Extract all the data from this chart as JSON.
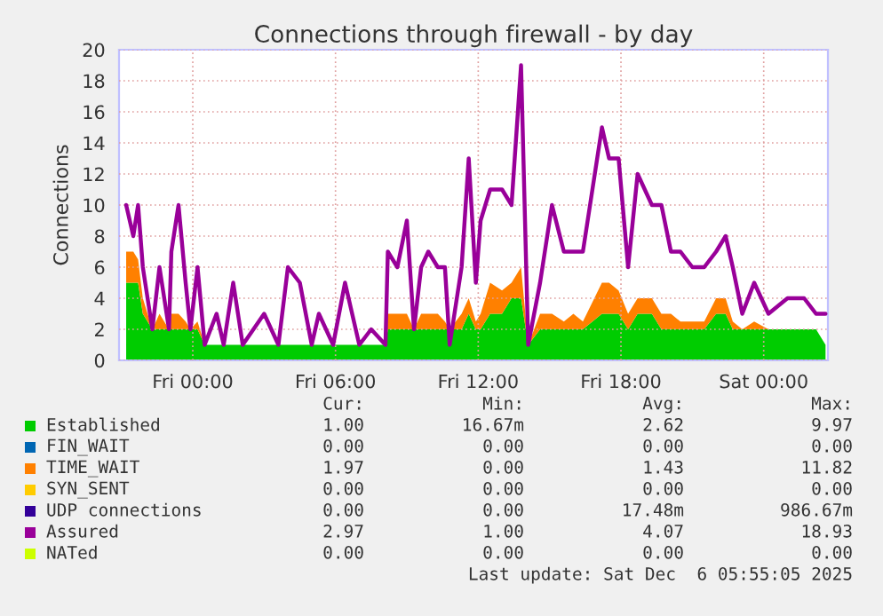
{
  "chart_data": {
    "type": "area",
    "stacked": true,
    "title": "Connections through firewall - by day",
    "ylabel": "Connections",
    "x": [
      "2025-12-04T21:12",
      "2025-12-04T21:30",
      "2025-12-04T21:42",
      "2025-12-04T21:54",
      "2025-12-04T22:18",
      "2025-12-04T22:36",
      "2025-12-04T23:00",
      "2025-12-04T23:06",
      "2025-12-04T23:24",
      "2025-12-04T23:42",
      "2025-12-04T23:54",
      "2025-12-05T00:12",
      "2025-12-05T00:30",
      "2025-12-05T01:00",
      "2025-12-05T01:18",
      "2025-12-05T01:42",
      "2025-12-05T02:06",
      "2025-12-05T03:00",
      "2025-12-05T03:36",
      "2025-12-05T04:00",
      "2025-12-05T04:30",
      "2025-12-05T05:00",
      "2025-12-05T05:18",
      "2025-12-05T05:54",
      "2025-12-05T06:24",
      "2025-12-05T07:00",
      "2025-12-05T07:30",
      "2025-12-05T08:06",
      "2025-12-05T08:12",
      "2025-12-05T08:36",
      "2025-12-05T09:00",
      "2025-12-05T09:18",
      "2025-12-05T09:36",
      "2025-12-05T09:54",
      "2025-12-05T10:18",
      "2025-12-05T10:36",
      "2025-12-05T10:48",
      "2025-12-05T11:18",
      "2025-12-05T11:36",
      "2025-12-05T11:54",
      "2025-12-05T12:06",
      "2025-12-05T12:30",
      "2025-12-05T13:00",
      "2025-12-05T13:24",
      "2025-12-05T13:48",
      "2025-12-05T14:06",
      "2025-12-05T14:36",
      "2025-12-05T15:06",
      "2025-12-05T15:36",
      "2025-12-05T16:00",
      "2025-12-05T16:24",
      "2025-12-05T17:12",
      "2025-12-05T17:30",
      "2025-12-05T17:54",
      "2025-12-05T18:18",
      "2025-12-05T18:42",
      "2025-12-05T19:18",
      "2025-12-05T19:42",
      "2025-12-05T20:06",
      "2025-12-05T20:30",
      "2025-12-05T21:00",
      "2025-12-05T21:30",
      "2025-12-05T22:00",
      "2025-12-05T22:24",
      "2025-12-05T22:42",
      "2025-12-05T23:06",
      "2025-12-05T23:36",
      "2025-12-06T00:12",
      "2025-12-06T01:00",
      "2025-12-06T01:42",
      "2025-12-06T02:12",
      "2025-12-06T02:36"
    ],
    "series": [
      {
        "name": "Established",
        "color": "#00cc00",
        "values": [
          5,
          5,
          5,
          3,
          2,
          2,
          2,
          2,
          2,
          2,
          2,
          2,
          1,
          1,
          1,
          1,
          1,
          1,
          1,
          1,
          1,
          1,
          1,
          1,
          1,
          1,
          1,
          1,
          2,
          2,
          2,
          2,
          2,
          2,
          2,
          2,
          2,
          2,
          3,
          2,
          2,
          3,
          3,
          4,
          4,
          1,
          2,
          2,
          2,
          2,
          2,
          3,
          3,
          3,
          2,
          3,
          3,
          2,
          2,
          2,
          2,
          2,
          3,
          3,
          2,
          2,
          2,
          2,
          2,
          2,
          2,
          1
        ]
      },
      {
        "name": "FIN_WAIT",
        "color": "#0066b3",
        "values": [
          null,
          null,
          null,
          null,
          null,
          null,
          null,
          null,
          null,
          null,
          null,
          null,
          null,
          null,
          null,
          null,
          null,
          null,
          null,
          null,
          null,
          null,
          null,
          null,
          null,
          null,
          null,
          null,
          null,
          null,
          null,
          null,
          null,
          null,
          null,
          null,
          null,
          null,
          null,
          null,
          null,
          null,
          null,
          null,
          null,
          null,
          null,
          null,
          null,
          null,
          null,
          null,
          null,
          null,
          null,
          null,
          null,
          null,
          null,
          null,
          null,
          null,
          null,
          null,
          null,
          null,
          null,
          null,
          null,
          null,
          null,
          null
        ]
      },
      {
        "name": "TIME_WAIT",
        "color": "#ff8000",
        "values": [
          2,
          2,
          1.5,
          1,
          0,
          1,
          0,
          1,
          1,
          0.5,
          0,
          0.5,
          0,
          0,
          0,
          0,
          0,
          0,
          0,
          0,
          0,
          0,
          0,
          0,
          0,
          0,
          0,
          0,
          1,
          1,
          1,
          0,
          1,
          1,
          1,
          0.5,
          0,
          1,
          1,
          0.5,
          1,
          2,
          1.5,
          1,
          2,
          0,
          1,
          1,
          0.5,
          1,
          0.5,
          2,
          2,
          1.5,
          1,
          1,
          1,
          1,
          1,
          0.5,
          0.5,
          0.5,
          1,
          1,
          0.5,
          0,
          0.5,
          0,
          0,
          0,
          0,
          0
        ]
      },
      {
        "name": "SYN_SENT",
        "color": "#ffcc00",
        "values": [
          null,
          null,
          null,
          null,
          null,
          null,
          null,
          null,
          null,
          null,
          null,
          null,
          null,
          null,
          null,
          null,
          null,
          null,
          null,
          null,
          null,
          null,
          null,
          null,
          null,
          null,
          null,
          null,
          null,
          null,
          null,
          null,
          null,
          null,
          null,
          null,
          null,
          null,
          null,
          null,
          null,
          null,
          null,
          null,
          null,
          null,
          null,
          null,
          null,
          null,
          null,
          null,
          null,
          null,
          null,
          null,
          null,
          null,
          null,
          null,
          null,
          null,
          null,
          null,
          null,
          null,
          null,
          null,
          null,
          null,
          null,
          null
        ]
      },
      {
        "name": "UDP connections",
        "color": "#330099",
        "values": [
          null,
          null,
          null,
          null,
          null,
          null,
          null,
          null,
          null,
          null,
          null,
          null,
          null,
          null,
          null,
          null,
          null,
          null,
          null,
          null,
          null,
          null,
          null,
          null,
          null,
          null,
          null,
          null,
          null,
          null,
          null,
          null,
          null,
          null,
          null,
          null,
          null,
          null,
          null,
          null,
          null,
          null,
          null,
          null,
          null,
          null,
          null,
          null,
          null,
          null,
          null,
          null,
          null,
          null,
          null,
          null,
          null,
          null,
          null,
          null,
          null,
          null,
          null,
          null,
          null,
          null,
          null,
          null,
          null,
          null,
          null,
          null
        ]
      },
      {
        "name": "Assured",
        "type": "line",
        "color": "#990099",
        "values": [
          10,
          8,
          10,
          6,
          2,
          6,
          2,
          7,
          10,
          5,
          2,
          6,
          1,
          3,
          1,
          5,
          1,
          3,
          1,
          6,
          5,
          1,
          3,
          1,
          5,
          1,
          2,
          1,
          7,
          6,
          9,
          2,
          6,
          7,
          6,
          6,
          1,
          6,
          13,
          5,
          9,
          11,
          11,
          10,
          19,
          1,
          5,
          10,
          7,
          7,
          7,
          15,
          13,
          13,
          6,
          12,
          10,
          10,
          7,
          7,
          6,
          6,
          7,
          8,
          6,
          3,
          5,
          3,
          4,
          4,
          3,
          3
        ]
      },
      {
        "name": "NATed",
        "type": "line",
        "color": "#ccff00",
        "values": [
          null,
          null,
          null,
          null,
          null,
          null,
          null,
          null,
          null,
          null,
          null,
          null,
          null,
          null,
          null,
          null,
          null,
          null,
          null,
          null,
          null,
          null,
          null,
          null,
          null,
          null,
          null,
          null,
          null,
          null,
          null,
          null,
          null,
          null,
          null,
          null,
          null,
          null,
          null,
          null,
          null,
          null,
          null,
          null,
          null,
          null,
          null,
          null,
          null,
          null,
          null,
          null,
          null,
          null,
          null,
          null,
          null,
          null,
          null,
          null,
          null,
          null,
          null,
          null,
          null,
          null,
          null,
          null,
          null,
          null,
          null,
          null
        ]
      }
    ],
    "xlim": [
      "2025-12-04T20:54",
      "2025-12-06T02:42"
    ],
    "xticks": [
      {
        "value": "2025-12-05T00:00",
        "label": "Fri 00:00"
      },
      {
        "value": "2025-12-05T06:00",
        "label": "Fri 06:00"
      },
      {
        "value": "2025-12-05T12:00",
        "label": "Fri 12:00"
      },
      {
        "value": "2025-12-05T18:00",
        "label": "Fri 18:00"
      },
      {
        "value": "2025-12-06T00:00",
        "label": "Sat 00:00"
      }
    ],
    "ylim": [
      0,
      20
    ],
    "yticks": [
      0,
      2,
      4,
      6,
      8,
      10,
      12,
      14,
      16,
      18,
      20
    ],
    "grid": true,
    "legend": "bottom",
    "annotations": [
      "Cur:",
      "Min:",
      "Avg:",
      "Max:",
      "1.00",
      "16.67m",
      "2.62",
      "9.97",
      "0.00",
      "0.00",
      "0.00",
      "0.00",
      "1.97",
      "0.00",
      "1.43",
      "11.82",
      "0.00",
      "0.00",
      "0.00",
      "0.00",
      "0.00",
      "0.00",
      "17.48m",
      "986.67m",
      "2.97",
      "1.00",
      "4.07",
      "18.93",
      "0.00",
      "0.00",
      "0.00",
      "0.00",
      "Last update: Sat Dec  6 05:55:05 2025"
    ]
  }
}
